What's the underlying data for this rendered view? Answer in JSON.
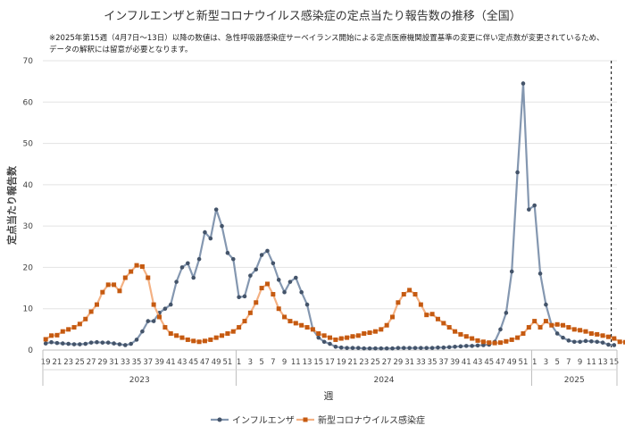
{
  "chart_data": {
    "type": "line",
    "title": "インフルエンザと新型コロナウイルス感染症の定点当たり報告数の推移（全国）",
    "note": "※2025年第15週（4月7日～13日）以降の数値は、急性呼吸器感染症サーベイランス開始による定点医療機関設置基準の変更に伴い定点数が変更されているため、データの解釈には留意が必要となります。",
    "xlabel": "週",
    "ylabel": "定点当たり報告数",
    "ylim": [
      0,
      70
    ],
    "yticks": [
      0,
      10,
      20,
      30,
      40,
      50,
      60,
      70
    ],
    "x_tick_labels": [
      "19",
      "21",
      "23",
      "25",
      "27",
      "29",
      "31",
      "33",
      "35",
      "37",
      "39",
      "41",
      "43",
      "45",
      "47",
      "49",
      "51",
      "1",
      "3",
      "5",
      "7",
      "9",
      "11",
      "13",
      "15",
      "17",
      "19",
      "21",
      "23",
      "25",
      "27",
      "29",
      "31",
      "33",
      "35",
      "37",
      "39",
      "41",
      "43",
      "45",
      "47",
      "49",
      "51",
      "1",
      "3",
      "5",
      "7",
      "9",
      "11",
      "13",
      "15"
    ],
    "years": [
      "2023",
      "2024",
      "2025"
    ],
    "legend_position": "bottom",
    "grid": true,
    "dashed_marker_week": "2025-15",
    "series": [
      {
        "name": "インフルエンザ",
        "color": "#44546a",
        "marker": "circle",
        "values": [
          1.6,
          1.9,
          1.7,
          1.6,
          1.5,
          1.4,
          1.4,
          1.5,
          1.8,
          1.9,
          1.8,
          1.8,
          1.6,
          1.4,
          1.2,
          1.5,
          2.5,
          4.5,
          7.0,
          7.0,
          9.0,
          10.0,
          11.0,
          16.5,
          20.0,
          21.0,
          17.5,
          22.0,
          28.5,
          27.0,
          34.0,
          30.0,
          23.5,
          22.0,
          12.8,
          13.0,
          18.0,
          19.5,
          23.0,
          24.0,
          21.0,
          17.0,
          14.0,
          16.5,
          17.5,
          14.0,
          11.0,
          5.0,
          3.0,
          2.0,
          1.5,
          0.8,
          0.6,
          0.5,
          0.5,
          0.5,
          0.4,
          0.4,
          0.4,
          0.4,
          0.4,
          0.4,
          0.5,
          0.5,
          0.5,
          0.5,
          0.5,
          0.5,
          0.5,
          0.6,
          0.6,
          0.7,
          0.8,
          0.9,
          1.0,
          1.0,
          1.1,
          1.2,
          1.3,
          2.0,
          5.0,
          9.0,
          19.0,
          43.0,
          64.5,
          34.0,
          35.0,
          18.5,
          11.0,
          6.0,
          4.0,
          3.0,
          2.3,
          2.0,
          2.0,
          2.2,
          2.1,
          2.0,
          1.8,
          1.3,
          1.2
        ]
      },
      {
        "name": "新型コロナウイルス感染症",
        "color": "#c55a11",
        "marker": "square",
        "values": [
          2.6,
          3.5,
          3.6,
          4.5,
          5.0,
          5.5,
          6.3,
          7.5,
          9.3,
          11.0,
          14.0,
          15.8,
          15.8,
          14.3,
          17.5,
          19.0,
          20.5,
          20.2,
          17.5,
          11.0,
          8.0,
          5.5,
          4.0,
          3.5,
          3.0,
          2.5,
          2.2,
          2.0,
          2.2,
          2.5,
          3.0,
          3.5,
          4.0,
          4.5,
          5.5,
          7.0,
          9.0,
          11.5,
          15.0,
          16.0,
          13.5,
          10.0,
          8.0,
          7.0,
          6.5,
          6.0,
          5.5,
          5.0,
          4.0,
          3.5,
          3.0,
          2.5,
          2.8,
          3.0,
          3.3,
          3.5,
          4.0,
          4.2,
          4.5,
          5.0,
          6.0,
          8.0,
          11.5,
          13.5,
          14.5,
          13.5,
          11.0,
          8.5,
          8.7,
          7.5,
          6.5,
          5.5,
          4.5,
          3.8,
          3.3,
          2.8,
          2.3,
          2.0,
          1.8,
          1.7,
          1.8,
          2.1,
          2.5,
          3.0,
          4.0,
          5.5,
          7.0,
          5.5,
          7.0,
          6.0,
          6.2,
          6.0,
          5.5,
          5.0,
          4.8,
          4.5,
          4.0,
          3.8,
          3.5,
          3.2,
          2.8,
          2.0,
          1.9,
          1.8
        ]
      }
    ]
  }
}
